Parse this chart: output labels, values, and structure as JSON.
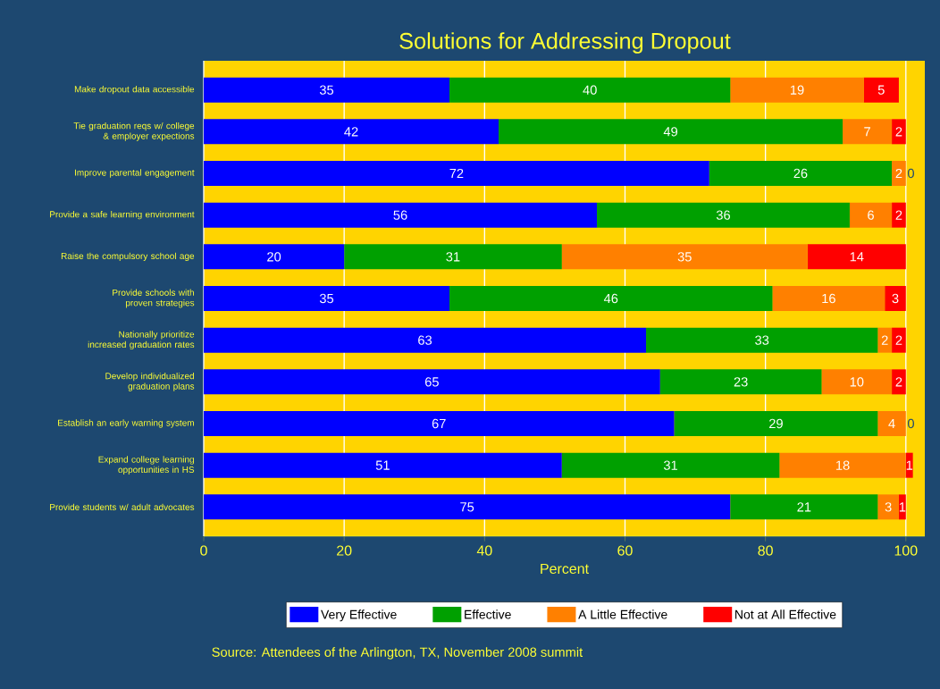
{
  "chart_data": {
    "type": "bar",
    "orientation": "horizontal",
    "stacked": true,
    "title": "Solutions for Addressing Dropout",
    "xlabel": "Percent",
    "categories": [
      "Make dropout data accessible",
      "Tie graduation reqs w/ college & employer expections",
      "Improve parental engagement",
      "Provide a safe learning environment",
      "Raise the compulsory school age",
      "Provide schools with proven strategies",
      "Nationally prioritize increased graduation rates",
      "Develop individualized graduation plans",
      "Establish an early warning system",
      "Expand college learning opportunities in HS",
      "Provide students w/ adult advocates"
    ],
    "series": [
      {
        "name": "Very Effective",
        "color": "#0000ff",
        "values": [
          35,
          42,
          72,
          56,
          20,
          35,
          63,
          65,
          67,
          51,
          75
        ]
      },
      {
        "name": "Effective",
        "color": "#00a000",
        "values": [
          40,
          49,
          26,
          36,
          31,
          46,
          33,
          23,
          29,
          31,
          21
        ]
      },
      {
        "name": "A Little Effective",
        "color": "#ff8000",
        "values": [
          19,
          7,
          2,
          6,
          35,
          16,
          2,
          10,
          4,
          18,
          3
        ]
      },
      {
        "name": "Not at All Effective",
        "color": "#ff0000",
        "values": [
          5,
          2,
          0,
          2,
          14,
          3,
          2,
          2,
          0,
          1,
          1
        ]
      }
    ],
    "xlim": [
      0,
      102.7
    ],
    "xticks": [
      0,
      20,
      40,
      60,
      80,
      100
    ],
    "grid": "x",
    "legend": "bottom",
    "data_labels": true,
    "annotations": [
      "Source: Attendees of the Arlington, TX, November 2008 summit"
    ]
  }
}
